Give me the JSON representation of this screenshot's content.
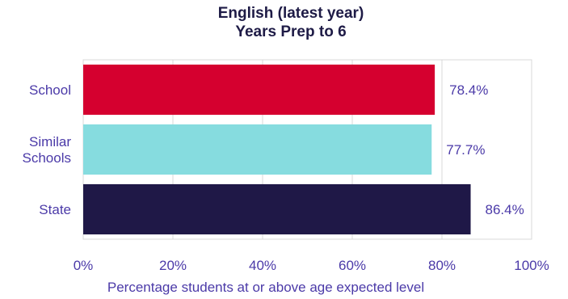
{
  "chart_data": {
    "type": "bar",
    "orientation": "horizontal",
    "title": [
      "English (latest year)",
      "Years Prep to 6"
    ],
    "categories": [
      [
        "School"
      ],
      [
        "Similar",
        "Schools"
      ],
      [
        "State"
      ]
    ],
    "values": [
      78.4,
      77.7,
      86.4
    ],
    "value_labels": [
      "78.4%",
      "77.7%",
      "86.4%"
    ],
    "colors": [
      "#d5002f",
      "#86dcdf",
      "#1f1847"
    ],
    "xlabel": "Percentage students at or above age expected level",
    "xlim": [
      0,
      100
    ],
    "x_ticks": [
      "0%",
      "20%",
      "40%",
      "60%",
      "80%",
      "100%"
    ],
    "grid": true,
    "legend": "none"
  }
}
